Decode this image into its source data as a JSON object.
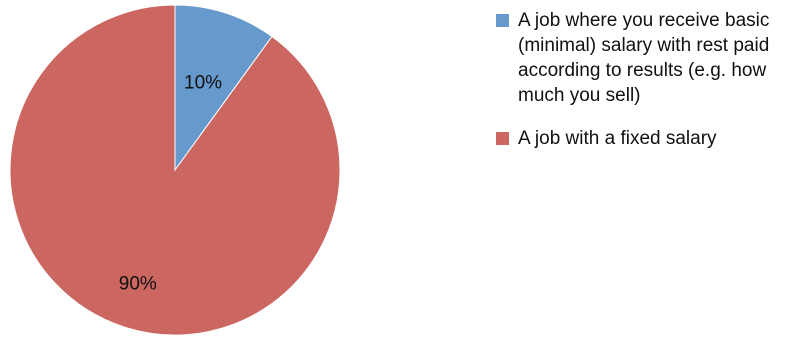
{
  "chart_data": {
    "type": "pie",
    "title": "",
    "categories": [
      "A job where you receive basic (minimal) salary with rest paid according to results (e.g. how much you sell)",
      "A job with a fixed salary"
    ],
    "values": [
      10,
      90
    ],
    "data_labels": [
      "10%",
      "90%"
    ],
    "colors": [
      "#6699cc",
      "#cc6660"
    ],
    "legend_position": "right",
    "start_angle": "12 o'clock",
    "direction": "clockwise"
  }
}
